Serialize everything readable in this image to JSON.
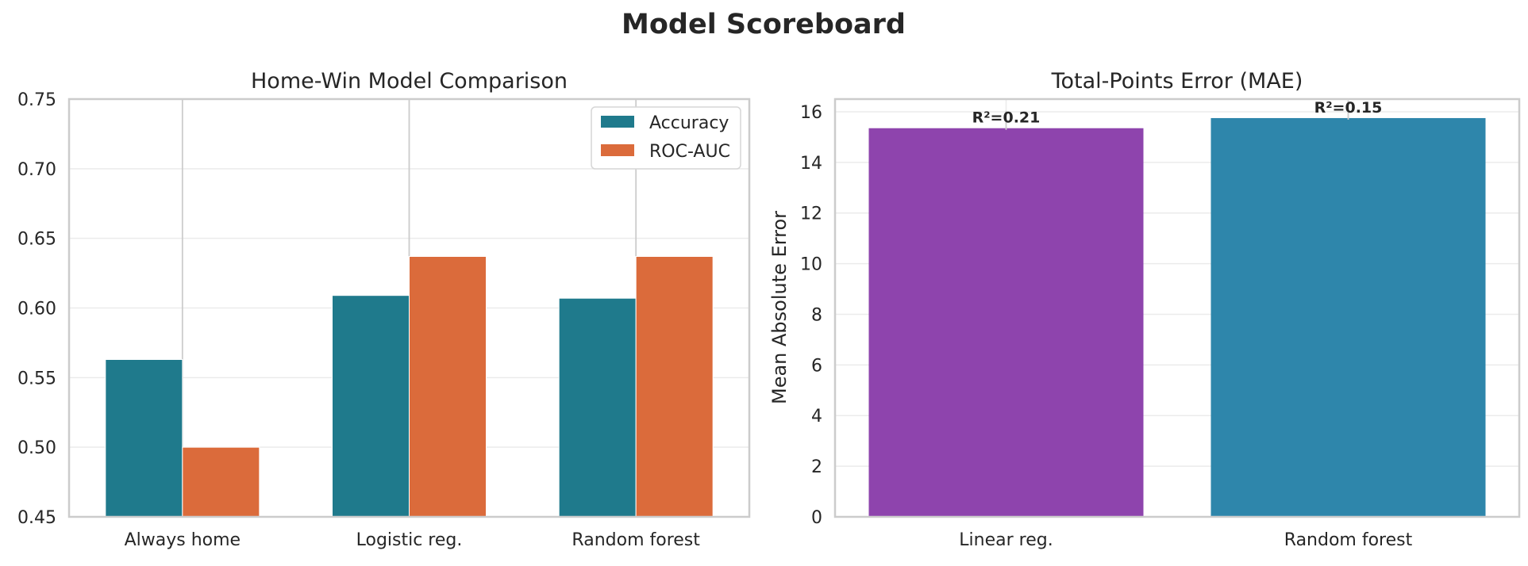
{
  "title": "Model Scoreboard",
  "colors": {
    "accuracy": "#1f7a8c",
    "roc_auc": "#db6b3b",
    "linear": "#8e44ad",
    "random_forest": "#2e86ab",
    "grid": "#ebebeb",
    "spine": "#cccccc"
  },
  "chart_data": [
    {
      "type": "bar",
      "title": "Home-Win Model Comparison",
      "xlabel": "",
      "ylabel": "",
      "categories": [
        "Always home",
        "Logistic reg.",
        "Random forest"
      ],
      "series": [
        {
          "name": "Accuracy",
          "values": [
            0.563,
            0.609,
            0.607
          ]
        },
        {
          "name": "ROC-AUC",
          "values": [
            0.5,
            0.637,
            0.637
          ]
        }
      ],
      "ylim": [
        0.45,
        0.75
      ],
      "yticks": [
        "0.45",
        "0.50",
        "0.55",
        "0.60",
        "0.65",
        "0.70",
        "0.75"
      ],
      "grid": true,
      "legend": "top-right"
    },
    {
      "type": "bar",
      "title": "Total-Points Error (MAE)",
      "xlabel": "",
      "ylabel": "Mean Absolute Error",
      "categories": [
        "Linear reg.",
        "Random forest"
      ],
      "values": [
        15.35,
        15.75
      ],
      "annotations": [
        "R²=0.21",
        "R²=0.15"
      ],
      "ylim": [
        0,
        16.5
      ],
      "yticks": [
        "0",
        "2",
        "4",
        "6",
        "8",
        "10",
        "12",
        "14",
        "16"
      ],
      "grid": true
    }
  ]
}
